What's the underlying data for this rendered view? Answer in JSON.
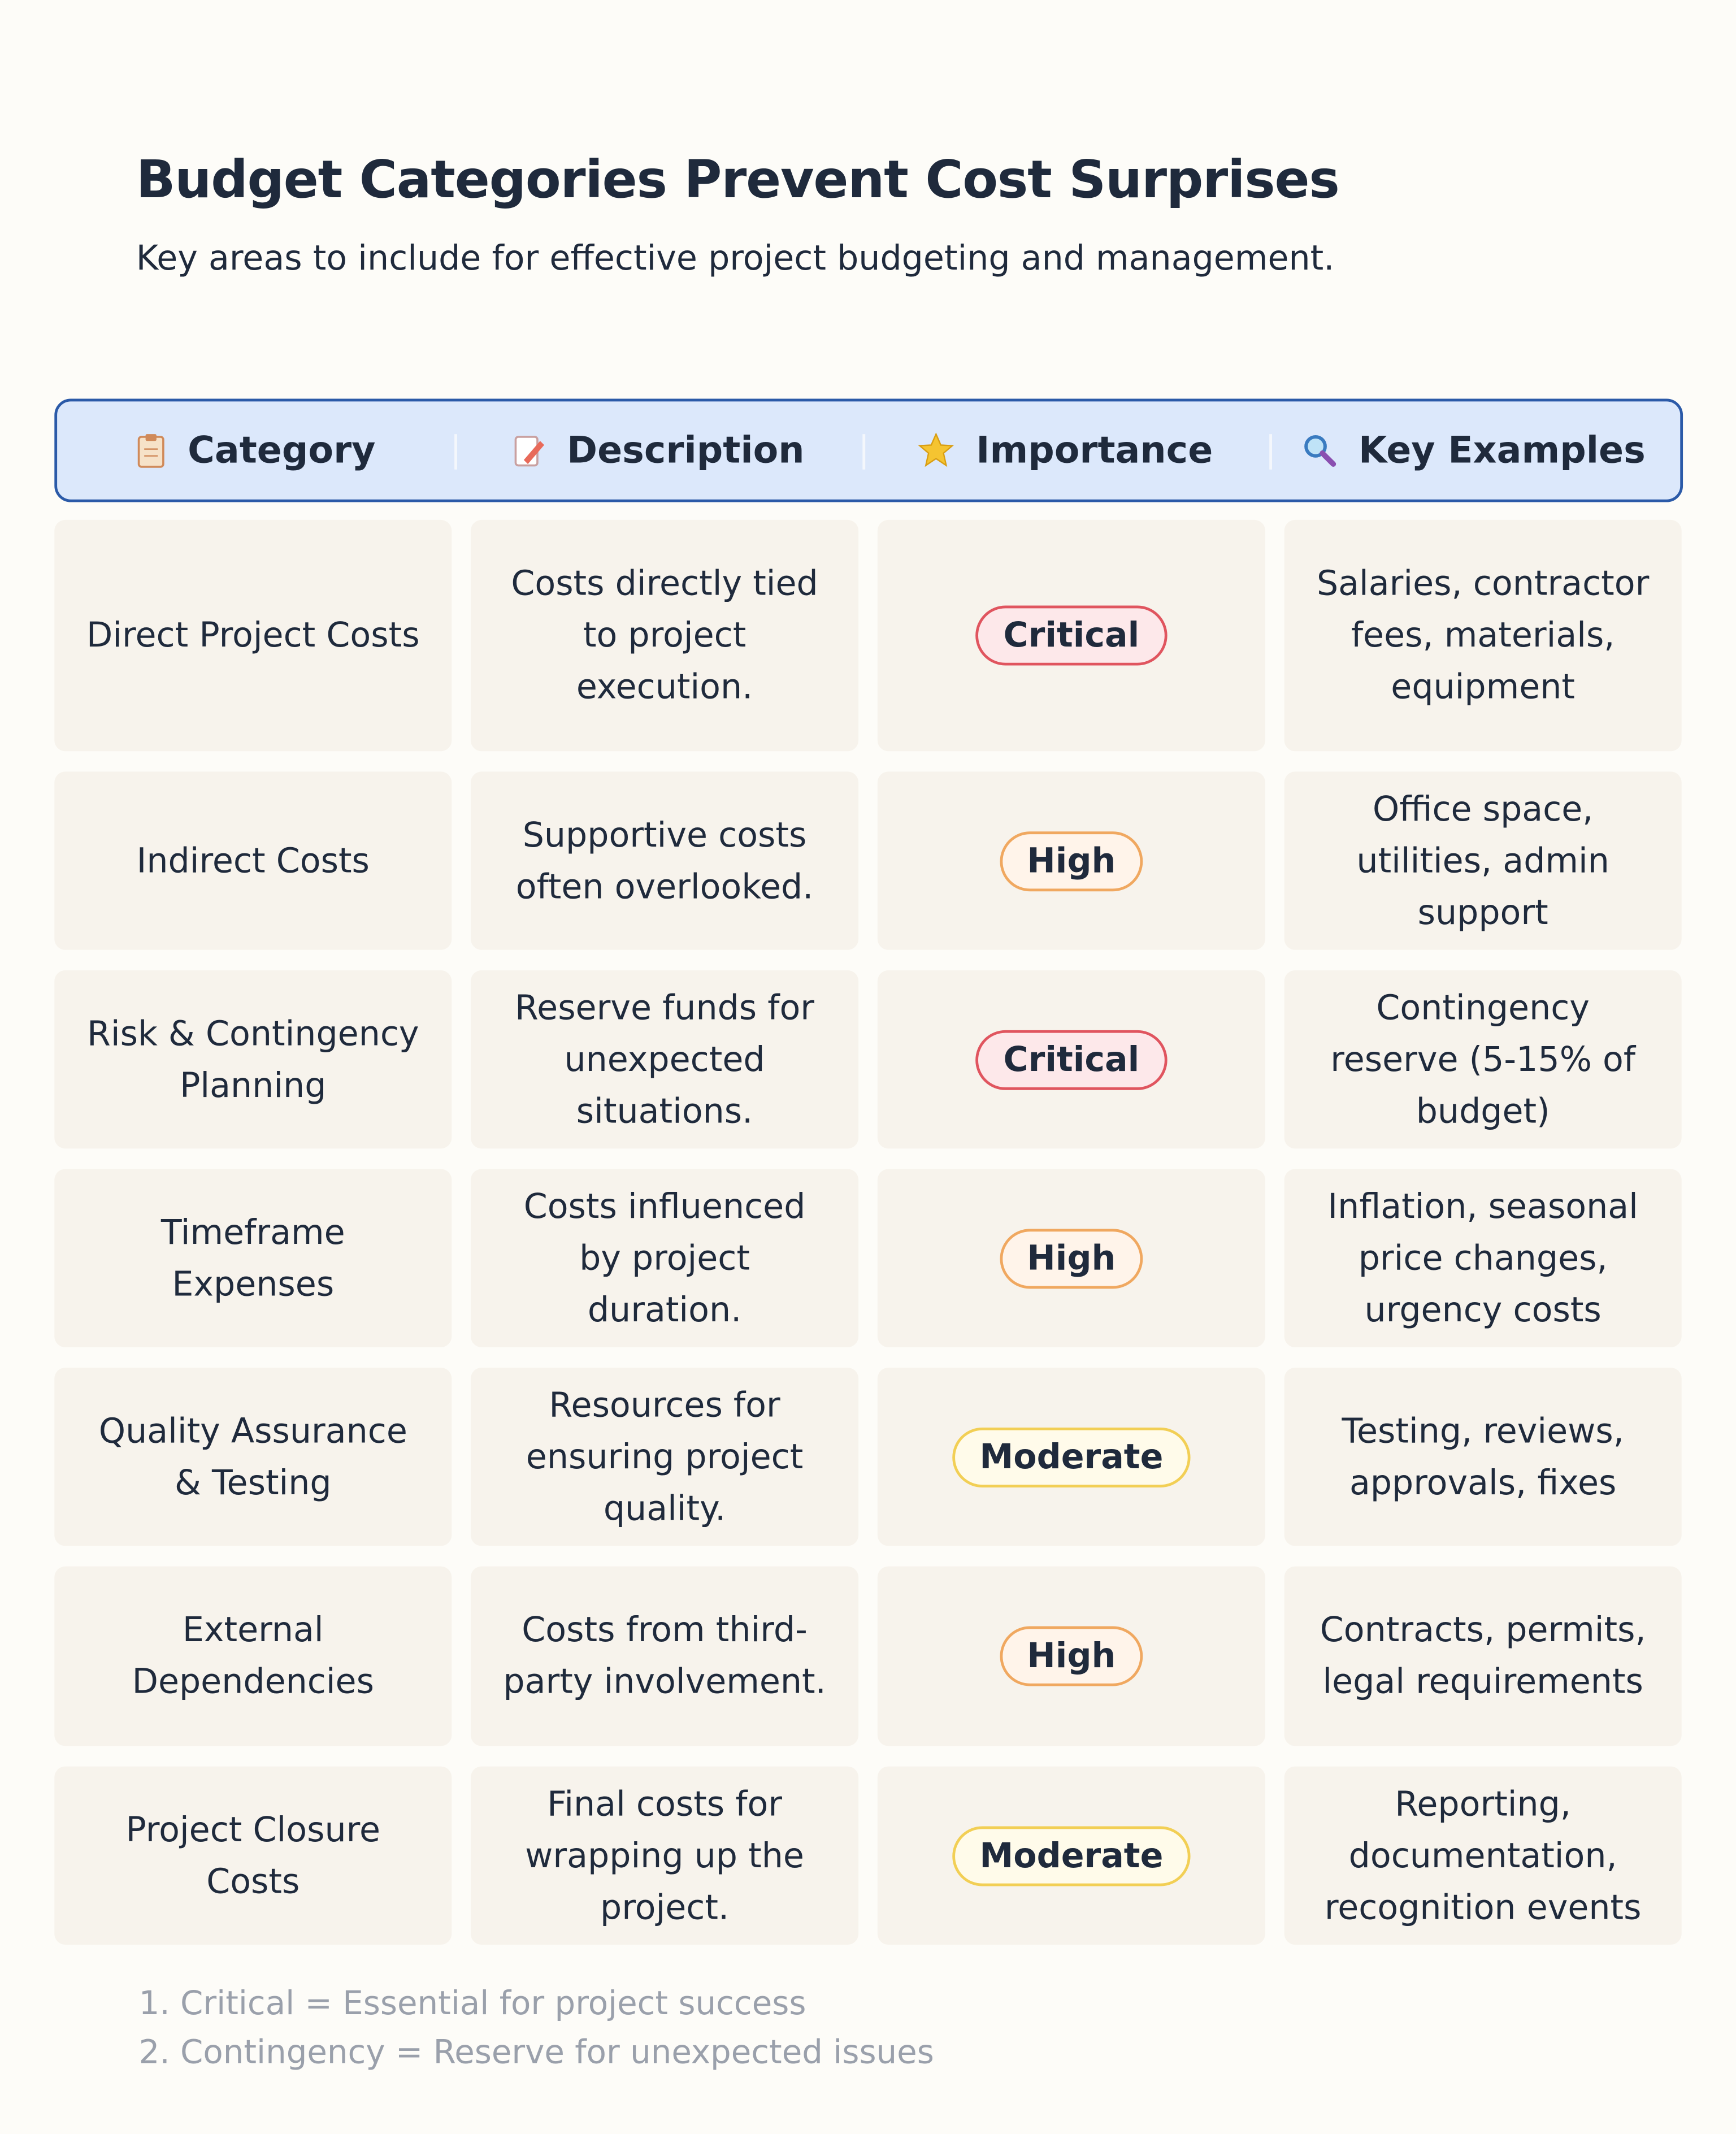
{
  "header": {
    "title": "Budget Categories Prevent Cost Surprises",
    "subtitle": "Key areas to include for effective project budgeting and management."
  },
  "table": {
    "columns": [
      "Category",
      "Description",
      "Importance",
      "Key Examples"
    ],
    "rows": [
      {
        "category": "Direct Project Costs",
        "description": "Costs directly tied to project execution.",
        "importance": {
          "label": "Critical",
          "color": "#e0555f",
          "fill": "#fde8ea"
        },
        "examples": "Salaries, contractor fees, materials, equipment"
      },
      {
        "category": "Indirect Costs",
        "description": "Supportive costs often overlooked.",
        "importance": {
          "label": "High",
          "color": "#f0a860",
          "fill": "#fff4ea"
        },
        "examples": "Office space, utilities, admin support"
      },
      {
        "category": "Risk & Contingency Planning",
        "description": "Reserve funds for unexpected situations.",
        "importance": {
          "label": "Critical",
          "color": "#e0555f",
          "fill": "#fde8ea"
        },
        "examples": "Contingency reserve (5-15% of budget)"
      },
      {
        "category": "Timeframe Expenses",
        "description": "Costs influenced by project duration.",
        "importance": {
          "label": "High",
          "color": "#f0a860",
          "fill": "#fff4ea"
        },
        "examples": "Inflation, seasonal price changes, urgency costs"
      },
      {
        "category": "Quality Assurance & Testing",
        "description": "Resources for ensuring project quality.",
        "importance": {
          "label": "Moderate",
          "color": "#f2cf55",
          "fill": "#fffbea"
        },
        "examples": "Testing, reviews, approvals, fixes"
      },
      {
        "category": "External Dependencies",
        "description": "Costs from third-party involvement.",
        "importance": {
          "label": "High",
          "color": "#f0a860",
          "fill": "#fff4ea"
        },
        "examples": "Contracts, permits, legal requirements"
      },
      {
        "category": "Project Closure Costs",
        "description": "Final costs for wrapping up the project.",
        "importance": {
          "label": "Moderate",
          "color": "#f2cf55",
          "fill": "#fffbea"
        },
        "examples": "Reporting, documentation, recognition events"
      }
    ]
  },
  "footnotes": [
    "1. Critical = Essential for project success",
    "2. Contingency = Reserve for unexpected issues"
  ]
}
